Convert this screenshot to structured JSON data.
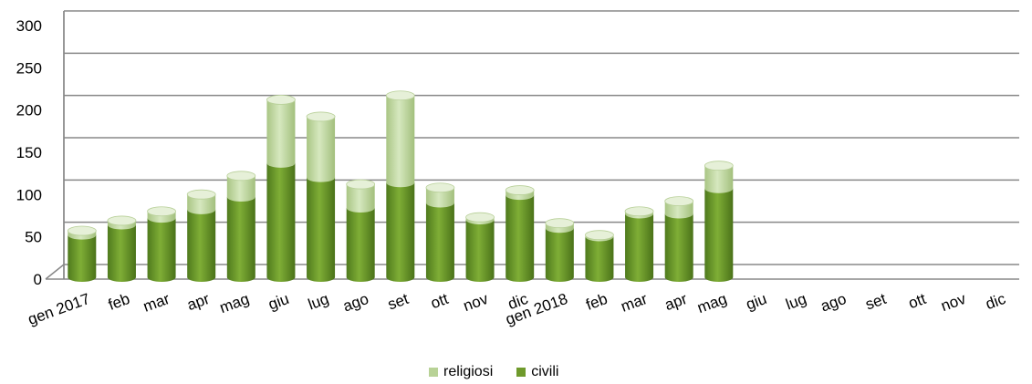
{
  "chart_data": {
    "type": "bar",
    "stacked": true,
    "categories": [
      "gen 2017",
      "feb",
      "mar",
      "apr",
      "mag",
      "giu",
      "lug",
      "ago",
      "set",
      "ott",
      "nov",
      "dic",
      "gen 2018",
      "feb",
      "mar",
      "apr",
      "mag",
      "giu",
      "lug",
      "ago",
      "set",
      "ott",
      "nov",
      "dic"
    ],
    "series": [
      {
        "name": "civili",
        "color": "#6f9a2c",
        "values": [
          50,
          62,
          70,
          80,
          95,
          135,
          118,
          82,
          112,
          88,
          68,
          97,
          58,
          48,
          75,
          75,
          105,
          null,
          null,
          null,
          null,
          null,
          null,
          null
        ]
      },
      {
        "name": "religiosi",
        "color": "#bcd59a",
        "values": [
          5,
          5,
          8,
          18,
          25,
          75,
          72,
          28,
          103,
          18,
          3,
          6,
          6,
          2,
          3,
          15,
          27,
          null,
          null,
          null,
          null,
          null,
          null,
          null
        ]
      }
    ],
    "yticks": [
      0,
      50,
      100,
      150,
      200,
      250,
      300
    ],
    "ylim": [
      0,
      300
    ],
    "grid": true,
    "legend_position": "bottom"
  }
}
